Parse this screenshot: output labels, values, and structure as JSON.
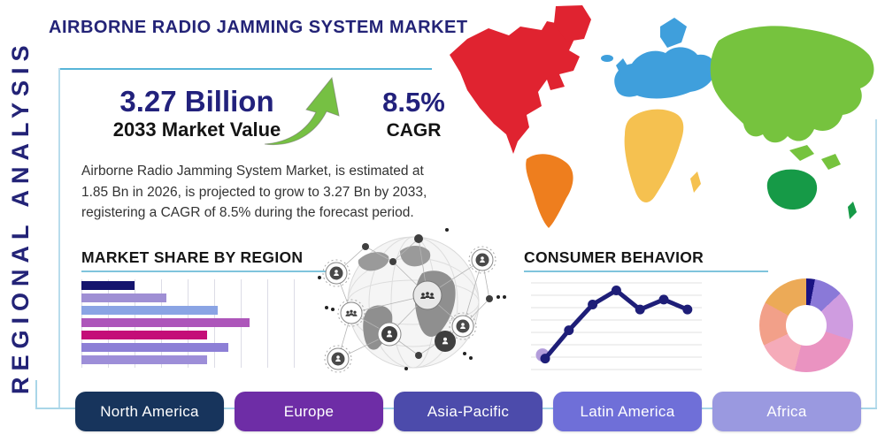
{
  "page": {
    "title": "AIRBORNE RADIO JAMMING SYSTEM MARKET",
    "side_label": "REGIONAL ANALYSIS"
  },
  "stats": {
    "market_value": "3.27 Billion",
    "market_value_label": "2033 Market Value",
    "cagr_value": "8.5%",
    "cagr_label": "CAGR",
    "growth_arrow_color": "#76c043",
    "description": "Airborne Radio Jamming System Market, is estimated at 1.85 Bn in 2026, is projected to grow to 3.27 Bn by 2033, registering a CAGR of 8.5% during the forecast period."
  },
  "chart_data": [
    {
      "type": "bar",
      "title": "MARKET SHARE BY REGION",
      "orientation": "horizontal",
      "values": [
        25,
        40,
        64,
        79,
        59,
        69,
        59
      ],
      "unit": "percent-of-axis",
      "colors": [
        "#14146e",
        "#9f8fd4",
        "#8aa4e4",
        "#ad56ba",
        "#c40e78",
        "#8d7fd6",
        "#9d8ed8"
      ],
      "grid": true,
      "gridlines": 9,
      "xlim": [
        0,
        100
      ]
    },
    {
      "type": "line",
      "title": "CONSUMER BEHAVIOR",
      "x": [
        1,
        2,
        3,
        4,
        5,
        6,
        7
      ],
      "values": [
        10,
        44,
        75,
        92,
        69,
        81,
        69
      ],
      "ylim": [
        0,
        100
      ],
      "line_color": "#1e1e78",
      "start_halo_color": "#b39ddb",
      "grid": true,
      "gridlines": 8,
      "markers": true
    },
    {
      "type": "pie",
      "title": "",
      "donut": true,
      "segments": [
        {
          "value": 3,
          "color": "#1a1383"
        },
        {
          "value": 10,
          "color": "#8a79d8"
        },
        {
          "value": 17,
          "color": "#cf9ce0"
        },
        {
          "value": 24,
          "color": "#ea93c1"
        },
        {
          "value": 14,
          "color": "#f5abb9"
        },
        {
          "value": 15,
          "color": "#f2a089"
        },
        {
          "value": 17,
          "color": "#ecaa57"
        }
      ]
    }
  ],
  "map": {
    "colors": {
      "north_america": "#e02330",
      "greenland": "#e02330",
      "south_america": "#ee7e1e",
      "europe": "#3f9fdc",
      "africa": "#f5c150",
      "asia": "#76c33e",
      "australia": "#169a47"
    }
  },
  "region_buttons": [
    {
      "label": "North America",
      "color": "#17345c"
    },
    {
      "label": "Europe",
      "color": "#6e2da6"
    },
    {
      "label": "Asia-Pacific",
      "color": "#4c4bab"
    },
    {
      "label": "Latin America",
      "color": "#6f6fd8"
    },
    {
      "label": "Africa",
      "color": "#9a99e0"
    }
  ]
}
